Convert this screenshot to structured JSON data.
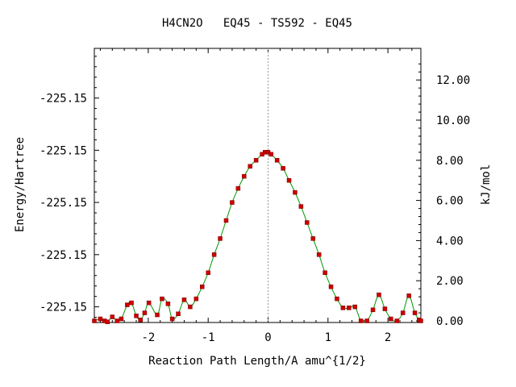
{
  "chart_data": {
    "type": "line",
    "title": "H4CN2O   EQ45 - TS592 - EQ45",
    "xlabel": "Reaction Path Length/A amu^{1/2}",
    "ylabel": "Energy/Hartree",
    "y2label": "kJ/mol",
    "xlim": [
      -2.9,
      2.55
    ],
    "y2lim": [
      0,
      13.5
    ],
    "x_ticks": [
      -2,
      -1,
      0,
      1,
      2
    ],
    "x_tick_labels": [
      "-2",
      "-1",
      "0",
      "1",
      "2"
    ],
    "y_tick_labels": [
      "-225.15",
      "-225.15",
      "-225.15",
      "-225.15",
      "-225.15"
    ],
    "y_tick_values_kj": [
      0.7,
      3.3,
      5.9,
      8.5,
      11.1
    ],
    "y2_ticks": [
      0,
      2,
      4,
      6,
      8,
      10,
      12
    ],
    "y2_tick_labels": [
      "0.00",
      "2.00",
      "4.00",
      "6.00",
      "8.00",
      "10.00",
      "12.00"
    ],
    "ts_marker_x": 0,
    "grid": false,
    "series": [
      {
        "color": "#009900",
        "marker_color": "#cc0000",
        "x": [
          -2.9,
          -2.8,
          -2.73,
          -2.68,
          -2.6,
          -2.52,
          -2.45,
          -2.35,
          -2.28,
          -2.2,
          -2.13,
          -2.06,
          -1.99,
          -1.85,
          -1.77,
          -1.67,
          -1.6,
          -1.5,
          -1.4,
          -1.3,
          -1.2,
          -1.1,
          -1.0,
          -0.9,
          -0.8,
          -0.7,
          -0.6,
          -0.5,
          -0.4,
          -0.3,
          -0.2,
          -0.1,
          -0.05,
          0.0,
          0.05,
          0.15,
          0.25,
          0.35,
          0.45,
          0.55,
          0.65,
          0.75,
          0.85,
          0.95,
          1.05,
          1.15,
          1.25,
          1.35,
          1.45,
          1.55,
          1.65,
          1.75,
          1.85,
          1.95,
          2.05,
          2.15,
          2.25,
          2.35,
          2.45,
          2.52,
          2.55
        ],
        "values": [
          0.0,
          0.1,
          0.0,
          -0.05,
          0.2,
          0.0,
          0.1,
          0.8,
          0.9,
          0.25,
          0.05,
          0.4,
          0.9,
          0.3,
          1.1,
          0.85,
          0.1,
          0.35,
          1.05,
          0.7,
          1.1,
          1.7,
          2.4,
          3.3,
          4.1,
          5.0,
          5.9,
          6.6,
          7.2,
          7.7,
          8.0,
          8.3,
          8.4,
          8.4,
          8.3,
          8.0,
          7.6,
          7.0,
          6.4,
          5.7,
          4.9,
          4.1,
          3.3,
          2.4,
          1.7,
          1.1,
          0.65,
          0.65,
          0.7,
          0.0,
          0.0,
          0.55,
          1.3,
          0.6,
          0.1,
          0.0,
          0.4,
          1.25,
          0.4,
          0.05,
          0.0
        ]
      }
    ]
  }
}
